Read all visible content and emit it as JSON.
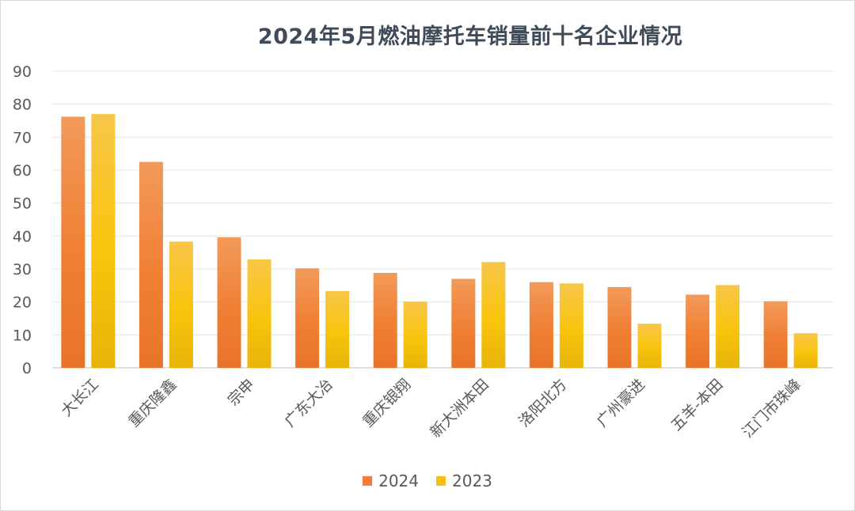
{
  "chart_data": {
    "type": "bar",
    "title": "2024年5月燃油摩托车销量前十名企业情况",
    "categories": [
      "大长江",
      "重庆隆鑫",
      "宗申",
      "广东大冶",
      "重庆银翔",
      "新大洲本田",
      "洛阳北方",
      "广州豪进",
      "五羊-本田",
      "江门市珠峰"
    ],
    "series": [
      {
        "name": "2024",
        "values": [
          76.2,
          62.5,
          39.6,
          30.2,
          28.8,
          27.0,
          26.0,
          24.5,
          22.2,
          20.2
        ]
      },
      {
        "name": "2023",
        "values": [
          77.0,
          38.3,
          32.9,
          23.3,
          20.1,
          32.1,
          25.6,
          13.4,
          25.1,
          10.5
        ]
      }
    ],
    "ylim": [
      0,
      90
    ],
    "yticks": [
      "0",
      "10",
      "20",
      "30",
      "40",
      "50",
      "60",
      "70",
      "80",
      "90"
    ],
    "grid": true,
    "legend_position": "bottom",
    "colors": {
      "2024": "#f07f33",
      "2023": "#f7bf12"
    }
  }
}
